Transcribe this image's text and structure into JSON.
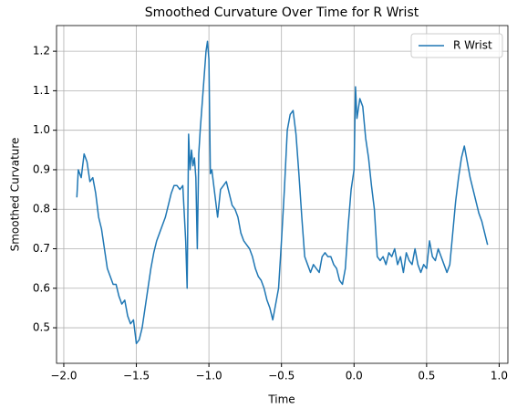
{
  "chart_data": {
    "type": "line",
    "title": "Smoothed Curvature Over Time for R Wrist",
    "xlabel": "Time",
    "ylabel": "Smoothed Curvature",
    "x": [
      -1.91,
      -1.9,
      -1.88,
      -1.86,
      -1.84,
      -1.82,
      -1.8,
      -1.78,
      -1.76,
      -1.74,
      -1.72,
      -1.7,
      -1.68,
      -1.66,
      -1.64,
      -1.62,
      -1.6,
      -1.58,
      -1.56,
      -1.54,
      -1.52,
      -1.5,
      -1.48,
      -1.46,
      -1.44,
      -1.42,
      -1.4,
      -1.38,
      -1.36,
      -1.34,
      -1.32,
      -1.3,
      -1.28,
      -1.26,
      -1.24,
      -1.22,
      -1.2,
      -1.18,
      -1.16,
      -1.15,
      -1.14,
      -1.13,
      -1.12,
      -1.11,
      -1.1,
      -1.09,
      -1.08,
      -1.07,
      -1.06,
      -1.04,
      -1.02,
      -1.01,
      -1.0,
      -0.99,
      -0.98,
      -0.96,
      -0.94,
      -0.92,
      -0.9,
      -0.88,
      -0.86,
      -0.84,
      -0.82,
      -0.8,
      -0.78,
      -0.76,
      -0.74,
      -0.72,
      -0.7,
      -0.68,
      -0.66,
      -0.64,
      -0.62,
      -0.6,
      -0.58,
      -0.56,
      -0.54,
      -0.52,
      -0.5,
      -0.48,
      -0.46,
      -0.44,
      -0.42,
      -0.4,
      -0.38,
      -0.36,
      -0.34,
      -0.32,
      -0.3,
      -0.28,
      -0.26,
      -0.24,
      -0.22,
      -0.2,
      -0.18,
      -0.16,
      -0.14,
      -0.12,
      -0.1,
      -0.08,
      -0.06,
      -0.04,
      -0.02,
      0.0,
      0.01,
      0.02,
      0.04,
      0.06,
      0.08,
      0.1,
      0.12,
      0.14,
      0.16,
      0.18,
      0.2,
      0.22,
      0.24,
      0.26,
      0.28,
      0.3,
      0.32,
      0.34,
      0.36,
      0.38,
      0.4,
      0.42,
      0.44,
      0.46,
      0.48,
      0.5,
      0.52,
      0.54,
      0.56,
      0.58,
      0.6,
      0.62,
      0.64,
      0.66,
      0.68,
      0.7,
      0.72,
      0.74,
      0.76,
      0.78,
      0.8,
      0.82,
      0.84,
      0.86,
      0.88,
      0.9,
      0.92
    ],
    "series": [
      {
        "name": "R Wrist",
        "color": "#1f77b4",
        "values": [
          0.83,
          0.9,
          0.88,
          0.94,
          0.92,
          0.87,
          0.88,
          0.84,
          0.78,
          0.75,
          0.7,
          0.65,
          0.63,
          0.61,
          0.61,
          0.58,
          0.56,
          0.57,
          0.53,
          0.51,
          0.52,
          0.46,
          0.47,
          0.5,
          0.55,
          0.6,
          0.65,
          0.69,
          0.72,
          0.74,
          0.76,
          0.78,
          0.81,
          0.84,
          0.86,
          0.86,
          0.85,
          0.86,
          0.72,
          0.6,
          0.99,
          0.9,
          0.95,
          0.91,
          0.93,
          0.88,
          0.7,
          0.94,
          1.0,
          1.1,
          1.2,
          1.225,
          1.18,
          0.89,
          0.9,
          0.84,
          0.78,
          0.85,
          0.86,
          0.87,
          0.84,
          0.81,
          0.8,
          0.78,
          0.74,
          0.72,
          0.71,
          0.7,
          0.68,
          0.65,
          0.63,
          0.62,
          0.6,
          0.57,
          0.55,
          0.52,
          0.56,
          0.6,
          0.72,
          0.85,
          1.0,
          1.04,
          1.05,
          0.99,
          0.89,
          0.78,
          0.68,
          0.66,
          0.64,
          0.66,
          0.65,
          0.64,
          0.68,
          0.69,
          0.68,
          0.68,
          0.66,
          0.65,
          0.62,
          0.61,
          0.65,
          0.76,
          0.85,
          0.9,
          1.11,
          1.03,
          1.08,
          1.06,
          0.98,
          0.93,
          0.86,
          0.8,
          0.68,
          0.67,
          0.68,
          0.66,
          0.69,
          0.68,
          0.7,
          0.66,
          0.68,
          0.64,
          0.69,
          0.67,
          0.66,
          0.7,
          0.66,
          0.64,
          0.66,
          0.65,
          0.72,
          0.68,
          0.67,
          0.7,
          0.68,
          0.66,
          0.64,
          0.66,
          0.74,
          0.82,
          0.88,
          0.93,
          0.96,
          0.92,
          0.88,
          0.85,
          0.82,
          0.79,
          0.77,
          0.74,
          0.71
        ]
      }
    ],
    "xlim": [
      -2.05,
      1.06
    ],
    "ylim": [
      0.41,
      1.265
    ],
    "xticks": [
      {
        "value": -2.0,
        "label": "−2.0"
      },
      {
        "value": -1.5,
        "label": "−1.5"
      },
      {
        "value": -1.0,
        "label": "−1.0"
      },
      {
        "value": -0.5,
        "label": "−0.5"
      },
      {
        "value": 0.0,
        "label": "0.0"
      },
      0.5,
      {
        "value": 1.0,
        "label": "1.0"
      }
    ],
    "yticks": [
      0.5,
      0.6,
      0.7,
      0.8,
      0.9,
      {
        "value": 1.0,
        "label": "1.0"
      },
      1.1,
      1.2
    ],
    "grid": true,
    "legend": "upper right"
  }
}
